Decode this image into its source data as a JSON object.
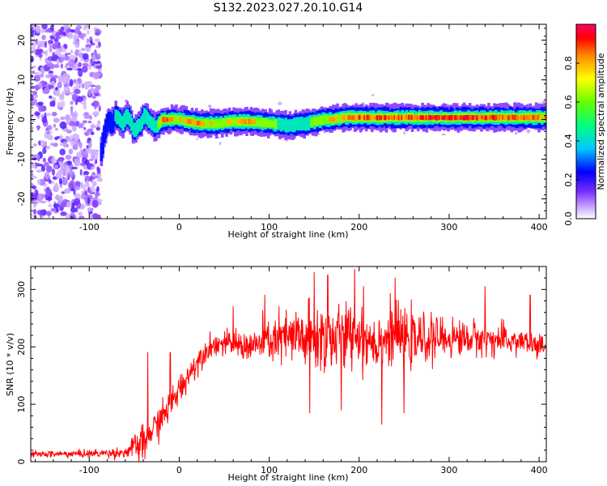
{
  "title": "S132.2023.027.20.10.G14",
  "chart_data": [
    {
      "type": "heatmap",
      "title": "",
      "xlabel": "Height of straight line (km)",
      "ylabel": "Frequency (Hz)",
      "xlim": [
        -165,
        408
      ],
      "ylim": [
        -25,
        24
      ],
      "xticks": [
        -100,
        0,
        100,
        200,
        300,
        400
      ],
      "yticks": [
        -20,
        -10,
        0,
        10,
        20
      ],
      "colorbar": {
        "label": "Normalized spectral amplitude",
        "range": [
          0,
          1
        ],
        "ticks": [
          "0.0",
          "0.2",
          "0.4",
          "0.6",
          "0.8"
        ],
        "colors": [
          "#ffffff",
          "#9a4dff",
          "#0000ff",
          "#00c8ff",
          "#00ff00",
          "#ffff00",
          "#ff8800",
          "#ff0000",
          "#ff0066"
        ]
      },
      "noise_region": {
        "x": [
          -165,
          -88
        ],
        "y": [
          -25,
          24
        ]
      },
      "ridge": {
        "x": [
          -88,
          -84,
          -80,
          -76,
          -72,
          -68,
          -64,
          -60,
          -56,
          -52,
          -48,
          -44,
          -40,
          -36,
          -32,
          -28,
          -24,
          -20,
          -10,
          0,
          20,
          40,
          60,
          80,
          100,
          120,
          140,
          150,
          160,
          170,
          180,
          200,
          240,
          280,
          320,
          360,
          400,
          408
        ],
        "y": [
          -8,
          -3,
          0,
          -1,
          1,
          0,
          -1,
          1,
          0,
          -3,
          -2,
          -1,
          1,
          0,
          -1,
          -2,
          -1,
          0,
          0,
          0,
          -1,
          -1,
          -0.5,
          -0.5,
          -1,
          -1.5,
          -1,
          -0.5,
          0,
          0,
          0.5,
          0.5,
          0.5,
          0.5,
          0.5,
          0.5,
          0.5,
          0.5
        ],
        "strength": [
          0.2,
          0.3,
          0.35,
          0.4,
          0.4,
          0.45,
          0.45,
          0.5,
          0.5,
          0.45,
          0.45,
          0.5,
          0.5,
          0.5,
          0.55,
          0.55,
          0.6,
          0.9,
          0.85,
          0.8,
          0.85,
          0.75,
          0.8,
          0.85,
          0.6,
          0.5,
          0.5,
          0.7,
          0.8,
          0.8,
          0.85,
          0.9,
          0.9,
          0.95,
          0.95,
          0.9,
          0.85,
          0.85
        ]
      }
    },
    {
      "type": "line",
      "title": "",
      "xlabel": "Height of straight line (km)",
      "ylabel": "SNR (10 * v/v)",
      "xlim": [
        -165,
        408
      ],
      "ylim": [
        0,
        340
      ],
      "xticks": [
        -100,
        0,
        100,
        200,
        300,
        400
      ],
      "yticks": [
        0,
        100,
        200,
        300
      ],
      "series": [
        {
          "color": "#ff0000",
          "envelope_x": [
            -165,
            -100,
            -60,
            -50,
            -40,
            -30,
            -20,
            -10,
            0,
            10,
            20,
            30,
            40,
            60,
            80,
            100,
            120,
            140,
            160,
            180,
            200,
            220,
            240,
            260,
            280,
            300,
            320,
            340,
            360,
            380,
            400,
            408
          ],
          "envelope_mean": [
            13,
            14,
            16,
            25,
            35,
            55,
            75,
            100,
            125,
            150,
            175,
            195,
            205,
            205,
            200,
            210,
            215,
            215,
            215,
            215,
            220,
            210,
            220,
            210,
            215,
            215,
            215,
            215,
            210,
            210,
            200,
            200
          ],
          "envelope_spread": [
            5,
            6,
            8,
            20,
            25,
            25,
            25,
            25,
            25,
            20,
            20,
            18,
            18,
            20,
            25,
            35,
            45,
            55,
            60,
            55,
            50,
            50,
            45,
            40,
            35,
            30,
            28,
            25,
            25,
            20,
            20,
            20
          ],
          "peak_points": [
            [
              -35,
              190
            ],
            [
              -10,
              190
            ],
            [
              60,
              270
            ],
            [
              95,
              290
            ],
            [
              150,
              330
            ],
            [
              165,
              325
            ],
            [
              180,
              320
            ],
            [
              195,
              335
            ],
            [
              205,
              305
            ],
            [
              240,
              320
            ],
            [
              250,
              305
            ],
            [
              340,
              305
            ],
            [
              390,
              290
            ]
          ],
          "dip_points": [
            [
              -45,
              0
            ],
            [
              -38,
              5
            ],
            [
              145,
              85
            ],
            [
              180,
              90
            ],
            [
              225,
              65
            ],
            [
              250,
              85
            ]
          ]
        }
      ]
    }
  ]
}
